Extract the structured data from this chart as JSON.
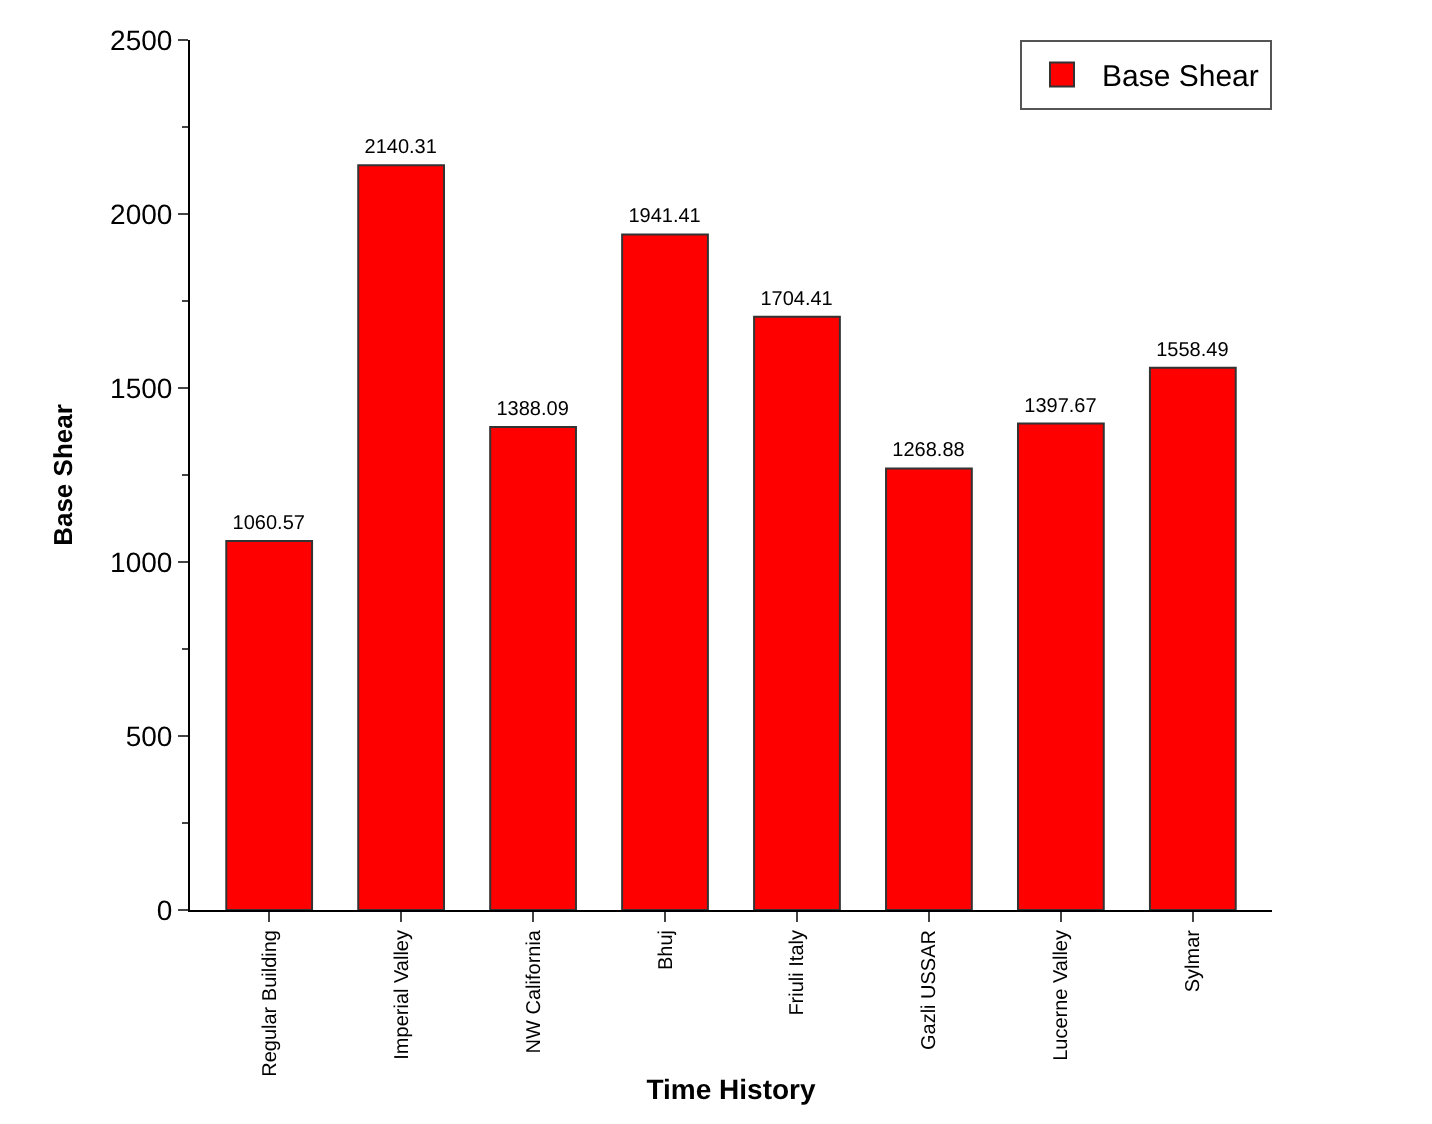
{
  "chart_data": {
    "type": "bar",
    "xlabel": "Time History",
    "ylabel": "Base Shear",
    "categories": [
      "Regular Building",
      "Imperial Valley",
      "NW California",
      "Bhuj",
      "Friuli Italy",
      "Gazli USSAR",
      "Lucerne Valley",
      "Sylmar"
    ],
    "series": [
      {
        "name": "Base Shear",
        "color": "#ff0000",
        "values": [
          1060.57,
          2140.31,
          1388.09,
          1941.41,
          1704.41,
          1268.88,
          1397.67,
          1558.49
        ]
      }
    ],
    "ylim": [
      0,
      2500
    ],
    "yticks": [
      0,
      500,
      1000,
      1500,
      2000,
      2500
    ],
    "data_labels": true,
    "legend": "top right"
  }
}
